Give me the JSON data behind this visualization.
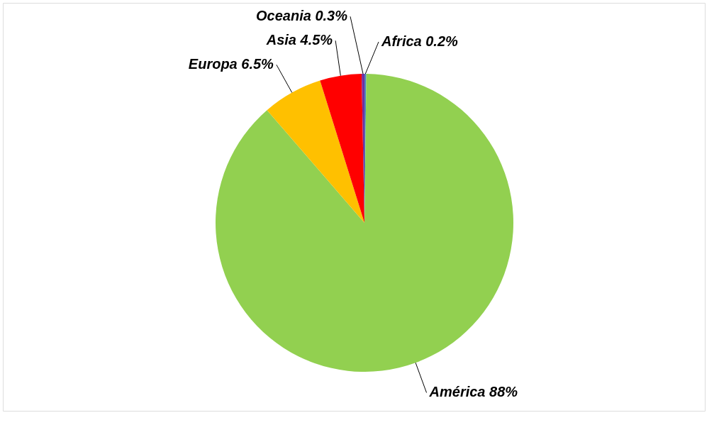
{
  "chart_data": {
    "type": "pie",
    "categories": [
      "Africa",
      "América",
      "Europa",
      "Asia",
      "Oceania"
    ],
    "values": [
      0.2,
      88,
      6.5,
      4.5,
      0.3
    ],
    "colors": [
      "#4f81bd",
      "#92d050",
      "#ffc000",
      "#ff0000",
      "#7030a0"
    ],
    "value_labels": [
      "0.2%",
      "88%",
      "6.5%",
      "4.5%",
      "0.3%"
    ]
  }
}
